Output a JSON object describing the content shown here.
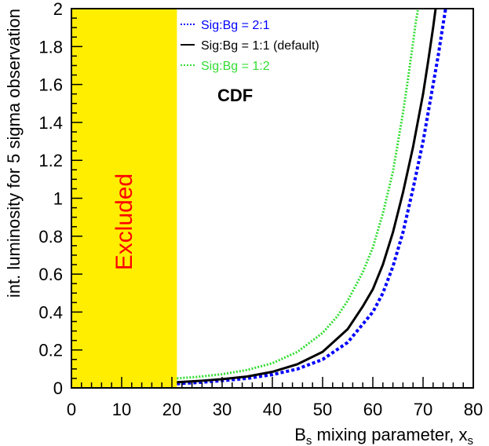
{
  "chart_data": {
    "type": "line",
    "title": "",
    "annotation": "CDF",
    "xlabel": {
      "main": "B",
      "sub": "s",
      "mid": " mixing parameter, x",
      "sub2": "s"
    },
    "ylabel": "int. luminosity for 5 sigma observation",
    "xlim": [
      0,
      80
    ],
    "ylim": [
      0,
      2
    ],
    "xticks": [
      "0",
      "10",
      "20",
      "30",
      "40",
      "50",
      "60",
      "70",
      "80"
    ],
    "yticks": [
      "0",
      "0.2",
      "0.4",
      "0.6",
      "0.8",
      "1",
      "1.2",
      "1.4",
      "1.6",
      "1.8",
      "2"
    ],
    "excluded_region": {
      "x_start": 0,
      "x_end": 21,
      "label": "Excluded",
      "color": "#ffee00",
      "label_color": "#ff0000"
    },
    "series": [
      {
        "name": "Sig:Bg = 2:1",
        "color": "#0000ff",
        "style": "dotted",
        "x": [
          21,
          25,
          30,
          35,
          40,
          45,
          50,
          55,
          60,
          62,
          64,
          66,
          68,
          70,
          72,
          73,
          74,
          74.5
        ],
        "y": [
          0.022,
          0.028,
          0.038,
          0.05,
          0.07,
          0.1,
          0.15,
          0.24,
          0.4,
          0.5,
          0.64,
          0.82,
          1.05,
          1.3,
          1.6,
          1.75,
          1.92,
          2.0
        ]
      },
      {
        "name": "Sig:Bg = 1:1 (default)",
        "color": "#000000",
        "style": "solid",
        "x": [
          21,
          25,
          30,
          35,
          40,
          45,
          50,
          55,
          58,
          60,
          62,
          64,
          66,
          68,
          70,
          71,
          72,
          72.5
        ],
        "y": [
          0.03,
          0.036,
          0.046,
          0.06,
          0.085,
          0.125,
          0.19,
          0.31,
          0.43,
          0.52,
          0.65,
          0.82,
          1.03,
          1.27,
          1.55,
          1.72,
          1.9,
          2.0
        ]
      },
      {
        "name": "Sig:Bg = 1:2",
        "color": "#33dd33",
        "style": "dotted",
        "x": [
          21,
          25,
          30,
          35,
          40,
          45,
          50,
          53,
          55,
          58,
          60,
          62,
          64,
          66,
          67,
          68,
          68.5,
          69
        ],
        "y": [
          0.05,
          0.058,
          0.072,
          0.095,
          0.13,
          0.19,
          0.29,
          0.38,
          0.46,
          0.61,
          0.74,
          0.92,
          1.14,
          1.45,
          1.63,
          1.82,
          1.92,
          2.0
        ]
      }
    ]
  }
}
